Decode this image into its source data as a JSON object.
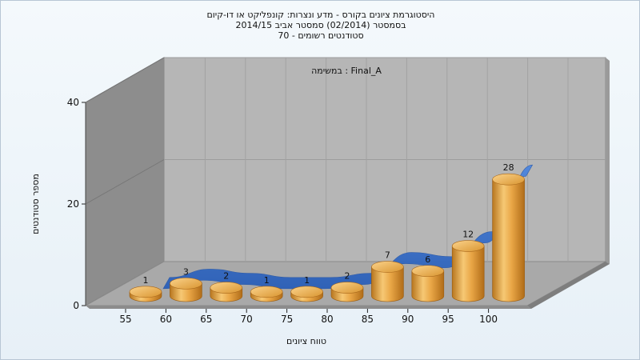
{
  "chart_data": {
    "type": "bar",
    "title": "היסטוגרמת ציונים בקורס - מדע ונצרות: קונפליקט או דו-קיום",
    "subtitle": "בסמסטר  (02/2014)  סמסטר אביב 2014/15",
    "subtitle2": "סטודנטים רשומים - 70",
    "annotation": "במשימה : Final_A",
    "xlabel": "טווח ציונים",
    "ylabel": "מספר סטודנטים",
    "categories": [
      "55",
      "60",
      "65",
      "70",
      "75",
      "80",
      "85",
      "90",
      "95",
      "100"
    ],
    "values": [
      1,
      3,
      2,
      1,
      1,
      2,
      7,
      6,
      12,
      28
    ],
    "ylim": [
      0,
      40
    ],
    "yticks": [
      0,
      20,
      40
    ],
    "grid": true,
    "series_style": "3d cylinders with smoothed ribbon line",
    "colors": {
      "bar": "#e8a94a",
      "ribbon": "#3a74d0",
      "wall": "#b9b9b9",
      "side_wall": "#8f8f8f"
    }
  }
}
